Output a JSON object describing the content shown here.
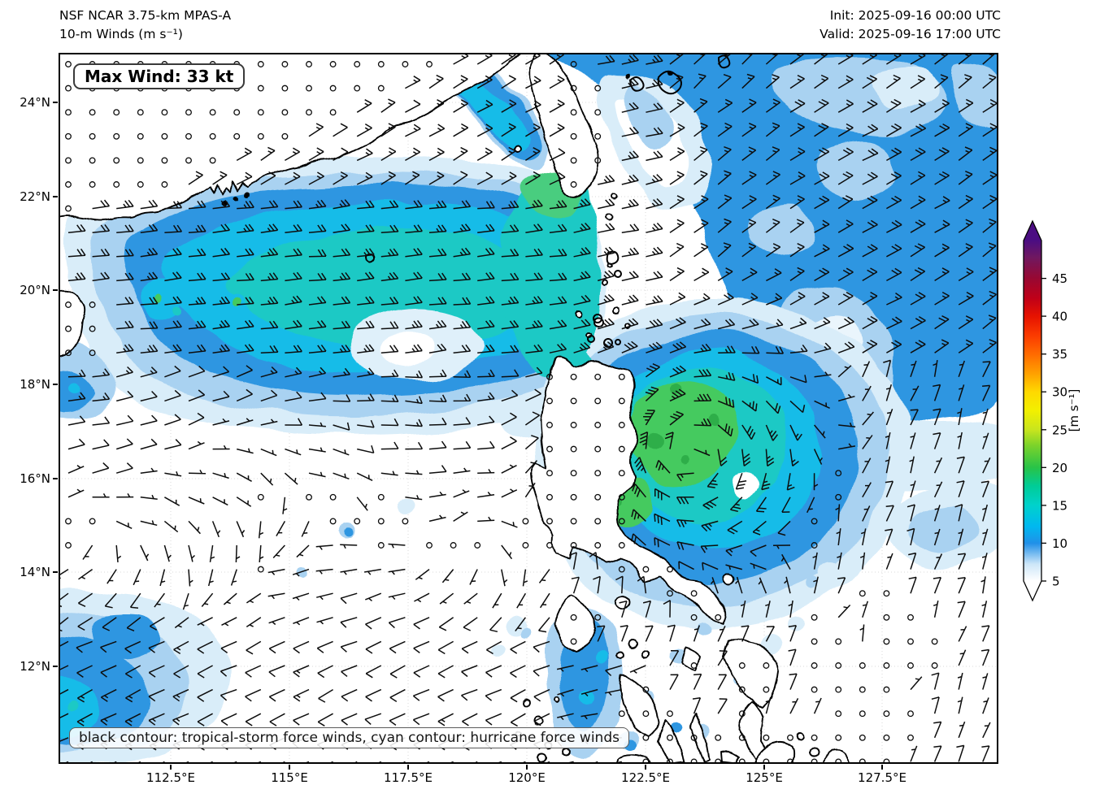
{
  "header": {
    "title_line1": "NSF NCAR 3.75-km MPAS-A",
    "title_line2": "10-m Winds (m s⁻¹)",
    "init_label": "Init: 2025-09-16 00:00 UTC",
    "valid_label": "Valid: 2025-09-16 17:00 UTC"
  },
  "map": {
    "max_wind_label": "Max Wind: 33 kt",
    "annotation": "black contour: tropical-storm force winds, cyan contour: hurricane force winds",
    "x_tick_labels": [
      "112.5°E",
      "115°E",
      "117.5°E",
      "120°E",
      "122.5°E",
      "125°E",
      "127.5°E"
    ],
    "y_tick_labels": [
      "24°N",
      "22°N",
      "20°N",
      "18°N",
      "16°N",
      "14°N",
      "12°N"
    ]
  },
  "colorbar": {
    "tick_labels": [
      "5",
      "10",
      "15",
      "20",
      "25",
      "30",
      "35",
      "40",
      "45"
    ],
    "unit_label": "[m s⁻¹]"
  },
  "palette": {
    "shade_pale": "#d9edf9",
    "shade_light": "#a9d2f1",
    "shade_medium": "#2e96e1",
    "shade_cyan": "#18bce8",
    "shade_teal": "#1cc9c5",
    "shade_green": "#45ca5e",
    "shade_deep_green": "#2fae4a",
    "barb_color": "#0d0d0d",
    "coast_color": "#000000"
  }
}
